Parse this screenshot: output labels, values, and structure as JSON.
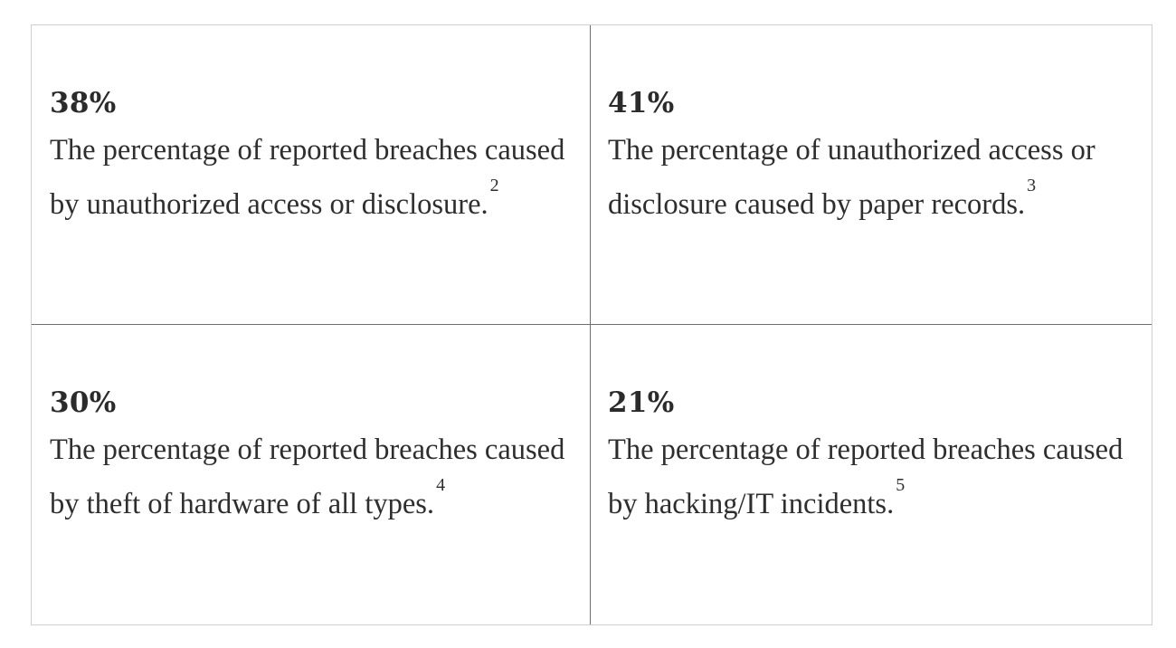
{
  "stats": [
    {
      "value": "38%",
      "description": "The percentage of reported breaches caused by unauthorized access or disclosure.",
      "footnote": "2"
    },
    {
      "value": "41%",
      "description": "The percentage of unauthorized access or disclosure caused by paper records.",
      "footnote": "3"
    },
    {
      "value": "30%",
      "description": "The percentage of reported breaches caused by theft of hardware of all types.",
      "footnote": "4"
    },
    {
      "value": "21%",
      "description": "The percentage of reported breaches caused by hacking/IT incidents.",
      "footnote": "5"
    }
  ]
}
